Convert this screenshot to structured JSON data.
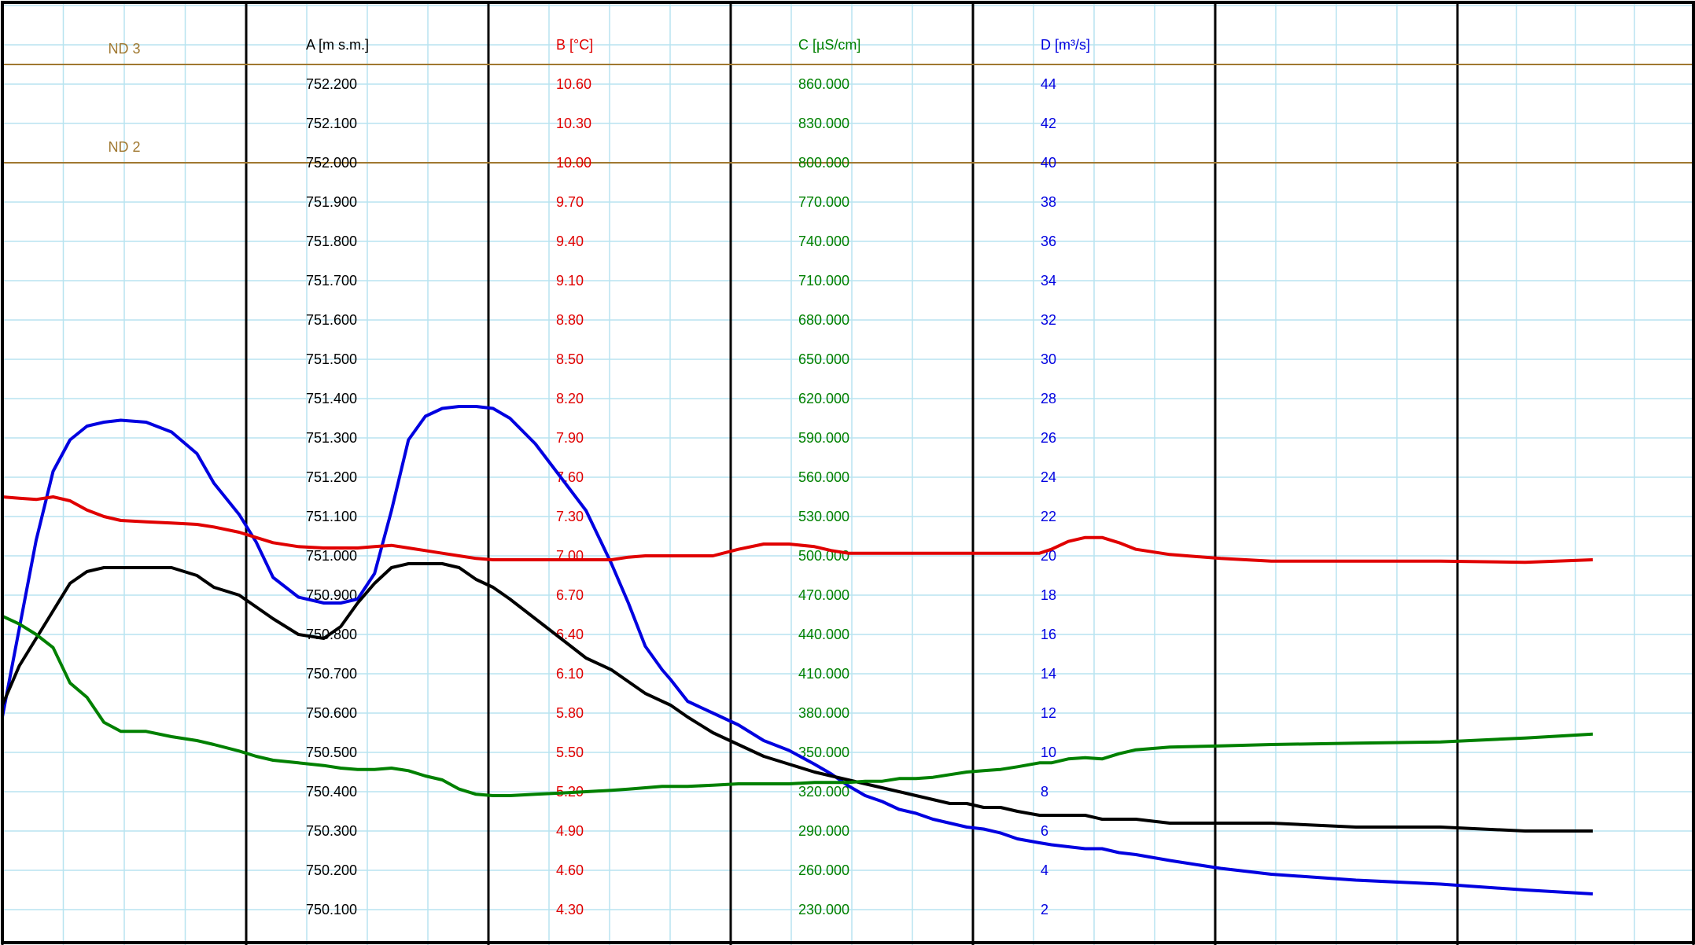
{
  "chart_data": {
    "type": "line",
    "title": "",
    "grid": true,
    "x": {
      "label": "",
      "range": [
        0,
        1
      ],
      "major_divisions": 7,
      "minor_per_major": 4
    },
    "axes": [
      {
        "key": "A",
        "label": "A [m s.m.]",
        "color": "#000000",
        "range": [
          750.0,
          752.3
        ],
        "ticks": [
          "752.200",
          "752.100",
          "752.000",
          "751.900",
          "751.800",
          "751.700",
          "751.600",
          "751.500",
          "751.400",
          "751.300",
          "751.200",
          "751.100",
          "751.000",
          "750.900",
          "750.800",
          "750.700",
          "750.600",
          "750.500",
          "750.400",
          "750.300",
          "750.200",
          "750.100"
        ]
      },
      {
        "key": "B",
        "label": "B [°C]",
        "color": "#e00000",
        "range": [
          4.0,
          10.9
        ],
        "ticks": [
          "10.60",
          "10.30",
          "10.00",
          "9.70",
          "9.40",
          "9.10",
          "8.80",
          "8.50",
          "8.20",
          "7.90",
          "7.60",
          "7.30",
          "7.00",
          "6.70",
          "6.40",
          "6.10",
          "5.80",
          "5.50",
          "5.20",
          "4.90",
          "4.60",
          "4.30"
        ]
      },
      {
        "key": "C",
        "label": "C [µS/cm]",
        "color": "#008000",
        "range": [
          200.0,
          890.0
        ],
        "ticks": [
          "860.000",
          "830.000",
          "800.000",
          "770.000",
          "740.000",
          "710.000",
          "680.000",
          "650.000",
          "620.000",
          "590.000",
          "560.000",
          "530.000",
          "500.000",
          "470.000",
          "440.000",
          "410.000",
          "380.000",
          "350.000",
          "320.000",
          "290.000",
          "260.000",
          "230.000"
        ]
      },
      {
        "key": "D",
        "label": "D [m³/s]",
        "color": "#0000e0",
        "range": [
          0,
          46
        ],
        "ticks": [
          "44",
          "42",
          "40",
          "38",
          "36",
          "34",
          "32",
          "30",
          "28",
          "26",
          "24",
          "22",
          "20",
          "18",
          "16",
          "14",
          "12",
          "10",
          "8",
          "6",
          "4",
          "2"
        ]
      }
    ],
    "reference_lines": [
      {
        "label": "ND 3",
        "axis": "A",
        "value": 752.25,
        "color": "#a07830"
      },
      {
        "label": "ND 2",
        "axis": "A",
        "value": 752.0,
        "color": "#a07830"
      }
    ],
    "series": [
      {
        "axis": "D",
        "color": "#0000e0",
        "x": [
          0.0,
          0.01,
          0.02,
          0.03,
          0.04,
          0.05,
          0.06,
          0.07,
          0.085,
          0.1,
          0.115,
          0.125,
          0.14,
          0.15,
          0.16,
          0.175,
          0.19,
          0.2,
          0.21,
          0.22,
          0.23,
          0.24,
          0.25,
          0.26,
          0.27,
          0.28,
          0.29,
          0.3,
          0.315,
          0.33,
          0.345,
          0.36,
          0.37,
          0.38,
          0.39,
          0.395,
          0.405,
          0.42,
          0.435,
          0.45,
          0.465,
          0.48,
          0.49,
          0.5,
          0.51,
          0.52,
          0.53,
          0.54,
          0.55,
          0.56,
          0.57,
          0.58,
          0.59,
          0.6,
          0.613,
          0.62,
          0.63,
          0.64,
          0.65,
          0.66,
          0.67,
          0.69,
          0.72,
          0.75,
          0.8,
          0.85,
          0.9,
          0.94
        ],
        "y": [
          11.8,
          16.3,
          20.8,
          24.3,
          25.9,
          26.6,
          26.8,
          26.9,
          26.8,
          26.3,
          25.2,
          23.7,
          22.1,
          20.7,
          18.9,
          17.9,
          17.6,
          17.6,
          17.8,
          19.1,
          22.3,
          25.9,
          27.1,
          27.5,
          27.6,
          27.6,
          27.5,
          27.0,
          25.7,
          24.0,
          22.3,
          19.6,
          17.6,
          15.4,
          14.2,
          13.7,
          12.6,
          12.0,
          11.4,
          10.6,
          10.1,
          9.4,
          8.9,
          8.3,
          7.8,
          7.5,
          7.1,
          6.9,
          6.6,
          6.4,
          6.2,
          6.1,
          5.9,
          5.6,
          5.4,
          5.3,
          5.2,
          5.1,
          5.1,
          4.9,
          4.8,
          4.5,
          4.1,
          3.8,
          3.5,
          3.3,
          3.0,
          2.8
        ]
      },
      {
        "axis": "A",
        "color": "#000000",
        "x": [
          0.0,
          0.01,
          0.02,
          0.03,
          0.04,
          0.05,
          0.06,
          0.07,
          0.085,
          0.1,
          0.115,
          0.125,
          0.14,
          0.15,
          0.16,
          0.175,
          0.19,
          0.2,
          0.21,
          0.22,
          0.23,
          0.24,
          0.25,
          0.26,
          0.27,
          0.28,
          0.29,
          0.3,
          0.315,
          0.33,
          0.345,
          0.36,
          0.37,
          0.38,
          0.39,
          0.395,
          0.405,
          0.42,
          0.435,
          0.45,
          0.465,
          0.48,
          0.49,
          0.5,
          0.51,
          0.52,
          0.53,
          0.54,
          0.55,
          0.56,
          0.57,
          0.58,
          0.59,
          0.6,
          0.613,
          0.62,
          0.63,
          0.64,
          0.65,
          0.66,
          0.67,
          0.69,
          0.72,
          0.75,
          0.8,
          0.85,
          0.9,
          0.94
        ],
        "y": [
          750.62,
          750.72,
          750.79,
          750.86,
          750.93,
          750.96,
          750.97,
          750.97,
          750.97,
          750.97,
          750.95,
          750.92,
          750.9,
          750.87,
          750.84,
          750.8,
          750.79,
          750.82,
          750.88,
          750.93,
          750.97,
          750.98,
          750.98,
          750.98,
          750.97,
          750.94,
          750.92,
          750.89,
          750.84,
          750.79,
          750.74,
          750.71,
          750.68,
          750.65,
          750.63,
          750.62,
          750.59,
          750.55,
          750.52,
          750.49,
          750.47,
          750.45,
          750.44,
          750.43,
          750.42,
          750.41,
          750.4,
          750.39,
          750.38,
          750.37,
          750.37,
          750.36,
          750.36,
          750.35,
          750.34,
          750.34,
          750.34,
          750.34,
          750.33,
          750.33,
          750.33,
          750.32,
          750.32,
          750.32,
          750.31,
          750.31,
          750.3,
          750.3
        ]
      },
      {
        "axis": "B",
        "color": "#e00000",
        "x": [
          0.0,
          0.01,
          0.02,
          0.03,
          0.04,
          0.05,
          0.06,
          0.07,
          0.085,
          0.1,
          0.115,
          0.125,
          0.14,
          0.15,
          0.16,
          0.175,
          0.19,
          0.2,
          0.21,
          0.22,
          0.23,
          0.24,
          0.25,
          0.26,
          0.27,
          0.28,
          0.29,
          0.3,
          0.315,
          0.33,
          0.345,
          0.36,
          0.37,
          0.38,
          0.39,
          0.395,
          0.405,
          0.42,
          0.435,
          0.45,
          0.465,
          0.48,
          0.49,
          0.5,
          0.51,
          0.52,
          0.53,
          0.54,
          0.55,
          0.56,
          0.57,
          0.58,
          0.59,
          0.6,
          0.613,
          0.62,
          0.63,
          0.64,
          0.65,
          0.66,
          0.67,
          0.69,
          0.72,
          0.75,
          0.8,
          0.85,
          0.9,
          0.94
        ],
        "y": [
          7.45,
          7.44,
          7.43,
          7.45,
          7.42,
          7.35,
          7.3,
          7.27,
          7.26,
          7.25,
          7.24,
          7.22,
          7.18,
          7.14,
          7.1,
          7.07,
          7.06,
          7.06,
          7.06,
          7.07,
          7.08,
          7.06,
          7.04,
          7.02,
          7.0,
          6.98,
          6.97,
          6.97,
          6.97,
          6.97,
          6.97,
          6.97,
          6.99,
          7.0,
          7.0,
          7.0,
          7.0,
          7.0,
          7.05,
          7.09,
          7.09,
          7.07,
          7.04,
          7.02,
          7.02,
          7.02,
          7.02,
          7.02,
          7.02,
          7.02,
          7.02,
          7.02,
          7.02,
          7.02,
          7.02,
          7.05,
          7.11,
          7.14,
          7.14,
          7.1,
          7.05,
          7.01,
          6.98,
          6.96,
          6.96,
          6.96,
          6.95,
          6.97
        ]
      },
      {
        "axis": "C",
        "color": "#008000",
        "x": [
          0.0,
          0.01,
          0.02,
          0.03,
          0.04,
          0.05,
          0.06,
          0.07,
          0.085,
          0.1,
          0.115,
          0.125,
          0.14,
          0.15,
          0.16,
          0.175,
          0.19,
          0.2,
          0.21,
          0.22,
          0.23,
          0.24,
          0.25,
          0.26,
          0.27,
          0.28,
          0.29,
          0.3,
          0.315,
          0.33,
          0.345,
          0.36,
          0.37,
          0.38,
          0.39,
          0.395,
          0.405,
          0.42,
          0.435,
          0.45,
          0.465,
          0.48,
          0.49,
          0.5,
          0.51,
          0.52,
          0.53,
          0.54,
          0.55,
          0.56,
          0.57,
          0.58,
          0.59,
          0.6,
          0.613,
          0.62,
          0.63,
          0.64,
          0.65,
          0.66,
          0.67,
          0.69,
          0.72,
          0.75,
          0.8,
          0.85,
          0.9,
          0.94
        ],
        "y": [
          454,
          448,
          440,
          430,
          403,
          392,
          373,
          366,
          366,
          362,
          359,
          356,
          351,
          347,
          344,
          342,
          340,
          338,
          337,
          337,
          338,
          336,
          332,
          329,
          322,
          318,
          317,
          317,
          318,
          319,
          320,
          321,
          322,
          323,
          324,
          324,
          324,
          325,
          326,
          326,
          326,
          327,
          327,
          327,
          328,
          328,
          330,
          330,
          331,
          333,
          335,
          336,
          337,
          339,
          342,
          342,
          345,
          346,
          345,
          349,
          352,
          354,
          355,
          356,
          357,
          358,
          361,
          364
        ]
      }
    ]
  }
}
